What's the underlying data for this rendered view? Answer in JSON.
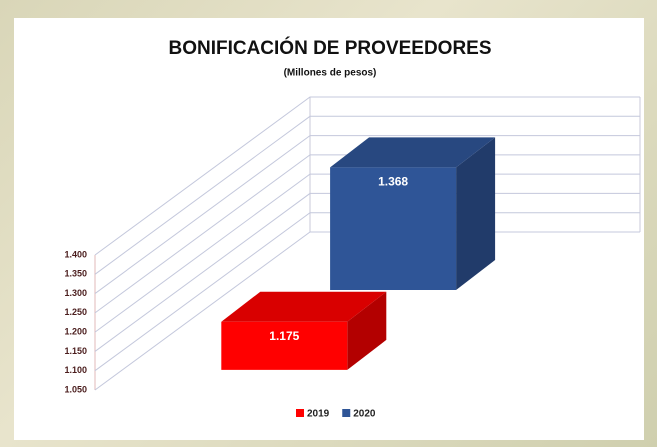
{
  "chart_data": {
    "type": "bar3d",
    "title": "BONIFICACIÓN DE PROVEEDORES",
    "subtitle": "(Millones de pesos)",
    "series": [
      {
        "name": "2019",
        "color": "#ff0000",
        "values": [
          1175
        ],
        "value_labels": [
          "1.175"
        ]
      },
      {
        "name": "2020",
        "color": "#2f5597",
        "values": [
          1368
        ],
        "value_labels": [
          "1.368"
        ]
      }
    ],
    "ylim": [
      1050,
      1400
    ],
    "yticks": [
      {
        "value": 1050,
        "label": "1.050"
      },
      {
        "value": 1100,
        "label": "1.100"
      },
      {
        "value": 1150,
        "label": "1.150"
      },
      {
        "value": 1200,
        "label": "1.200"
      },
      {
        "value": 1250,
        "label": "1.250"
      },
      {
        "value": 1300,
        "label": "1.300"
      },
      {
        "value": 1350,
        "label": "1.350"
      },
      {
        "value": 1400,
        "label": "1.400"
      }
    ],
    "grid": true,
    "legend": "bottom"
  }
}
